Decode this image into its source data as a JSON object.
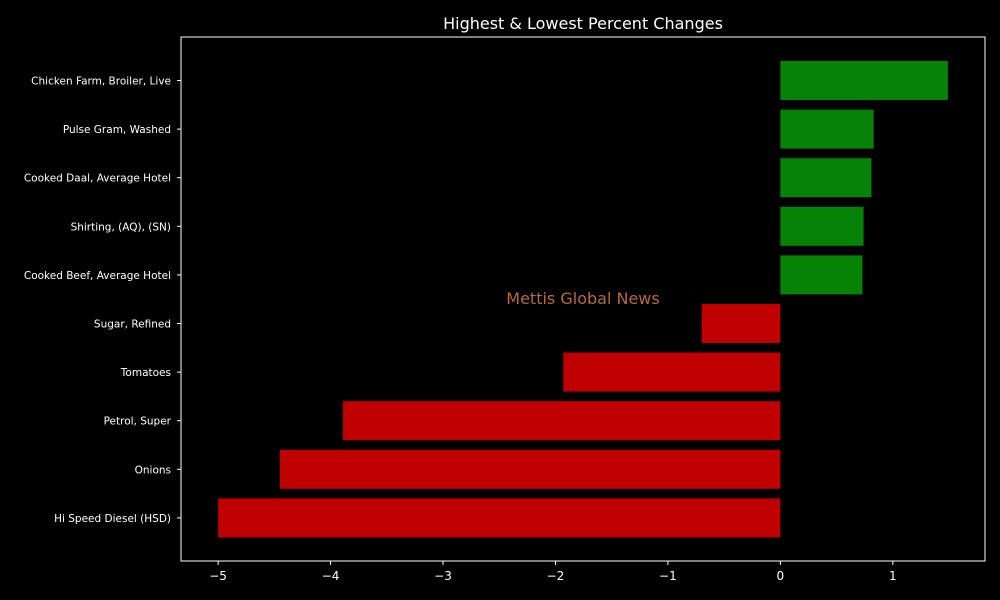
{
  "chart_data": {
    "type": "bar",
    "orientation": "horizontal",
    "title": "Highest & Lowest Percent Changes",
    "xlabel": "",
    "ylabel": "",
    "categories": [
      "Chicken Farm, Broiler, Live",
      "Pulse Gram, Washed",
      "Cooked Daal, Average Hotel",
      "Shirting, (AQ), (SN)",
      "Cooked Beef, Average Hotel",
      "Sugar, Refined",
      "Tomatoes",
      "Petrol, Super",
      "Onions",
      "Hi Speed Diesel (HSD)"
    ],
    "values": [
      1.49,
      0.83,
      0.81,
      0.74,
      0.73,
      -0.7,
      -1.93,
      -3.89,
      -4.45,
      -5.0
    ],
    "xlim": [
      -5.33,
      1.82
    ],
    "xticks": [
      -5,
      -4,
      -3,
      -2,
      -1,
      0,
      1
    ],
    "xtick_labels": [
      "−5",
      "−4",
      "−3",
      "−2",
      "−1",
      "0",
      "1"
    ],
    "grid": false,
    "positive_color": "#068206",
    "negative_color": "#c00000",
    "background_color": "#000000",
    "axis_color": "#ffffff",
    "watermark": "Mettis Global News",
    "watermark_color": "#b86a3a"
  }
}
